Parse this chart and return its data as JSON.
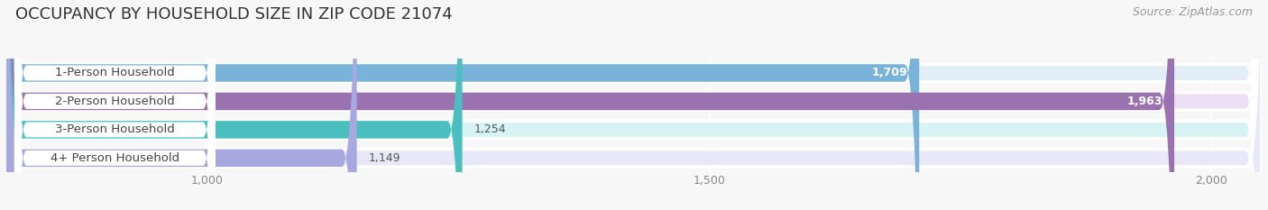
{
  "title": "OCCUPANCY BY HOUSEHOLD SIZE IN ZIP CODE 21074",
  "source": "Source: ZipAtlas.com",
  "categories": [
    "1-Person Household",
    "2-Person Household",
    "3-Person Household",
    "4+ Person Household"
  ],
  "values": [
    1709,
    1963,
    1254,
    1149
  ],
  "bar_colors": [
    "#7ab3d9",
    "#9b72b0",
    "#4bbfbf",
    "#a8a8e0"
  ],
  "bar_bg_colors": [
    "#e2eef8",
    "#ede0f5",
    "#d8f3f3",
    "#e8e8f8"
  ],
  "xlim_min": 800,
  "xlim_max": 2050,
  "xticks": [
    1000,
    1500,
    2000
  ],
  "background_color": "#f7f7f7",
  "bar_height": 0.62,
  "title_fontsize": 13,
  "label_fontsize": 9.5,
  "tick_fontsize": 9,
  "value_fontsize": 9,
  "source_fontsize": 9
}
